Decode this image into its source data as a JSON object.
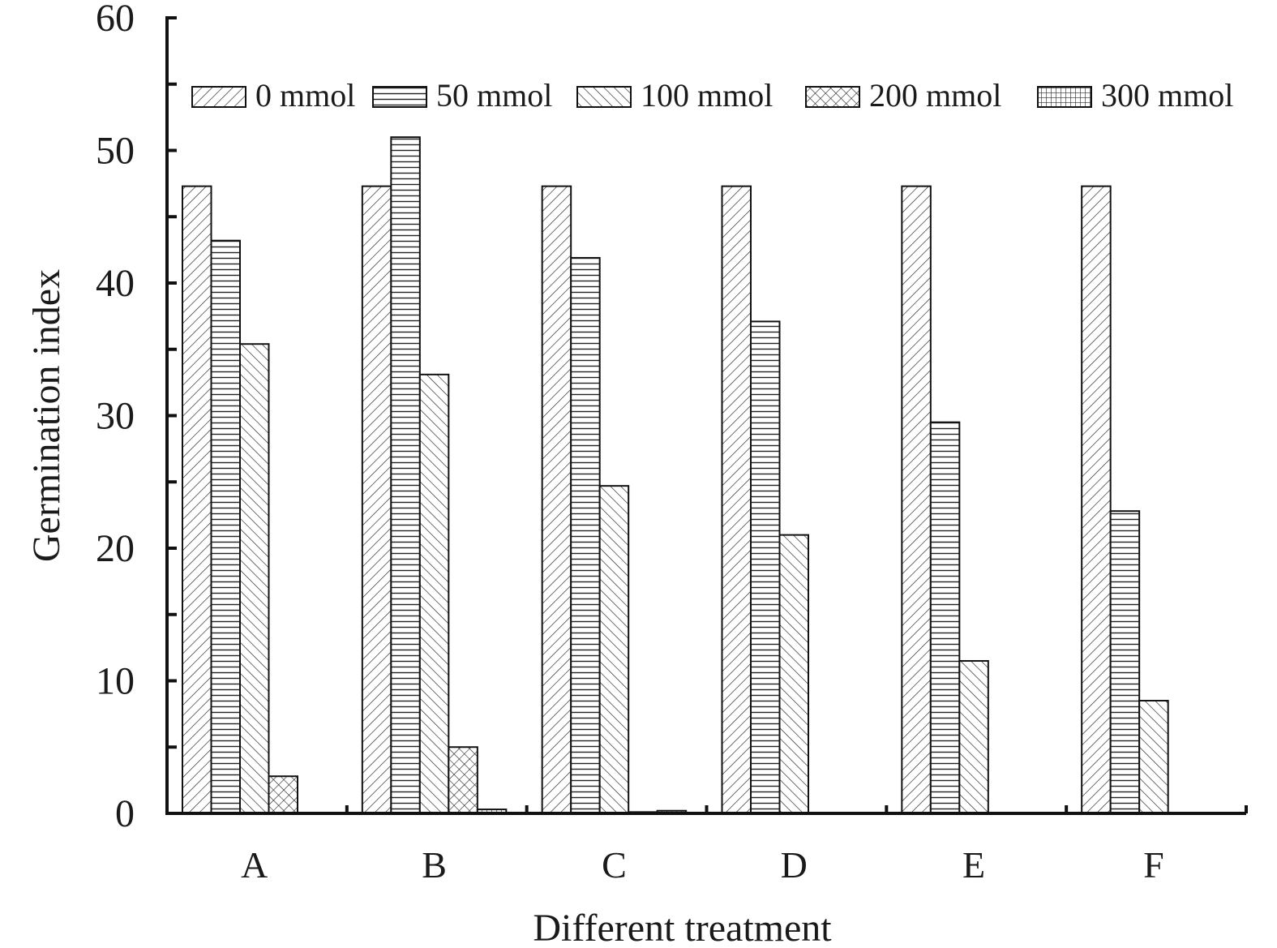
{
  "chart_data": {
    "type": "bar",
    "xlabel": "Different treatment",
    "ylabel": "Germination index",
    "ylim": [
      0,
      60
    ],
    "yticks": [
      "0",
      "10",
      "20",
      "30",
      "40",
      "50",
      "60"
    ],
    "categories": [
      "A",
      "B",
      "C",
      "D",
      "E",
      "F"
    ],
    "legend_position": "top",
    "series": [
      {
        "name": "0 mmol",
        "pattern": "diagonal-right",
        "values": [
          47.3,
          47.3,
          47.3,
          47.3,
          47.3,
          47.3
        ]
      },
      {
        "name": "50 mmol",
        "pattern": "horizontal",
        "values": [
          43.2,
          51.0,
          41.9,
          37.1,
          29.5,
          22.8
        ]
      },
      {
        "name": "100 mmol",
        "pattern": "diagonal-left",
        "values": [
          35.4,
          33.1,
          24.7,
          21.0,
          11.5,
          8.5
        ]
      },
      {
        "name": "200 mmol",
        "pattern": "crosshatch",
        "values": [
          2.8,
          5.0,
          0.1,
          0.0,
          0.0,
          0.0
        ]
      },
      {
        "name": "300 mmol",
        "pattern": "grid",
        "values": [
          0.0,
          0.3,
          0.2,
          0.0,
          0.0,
          0.0
        ]
      }
    ]
  }
}
